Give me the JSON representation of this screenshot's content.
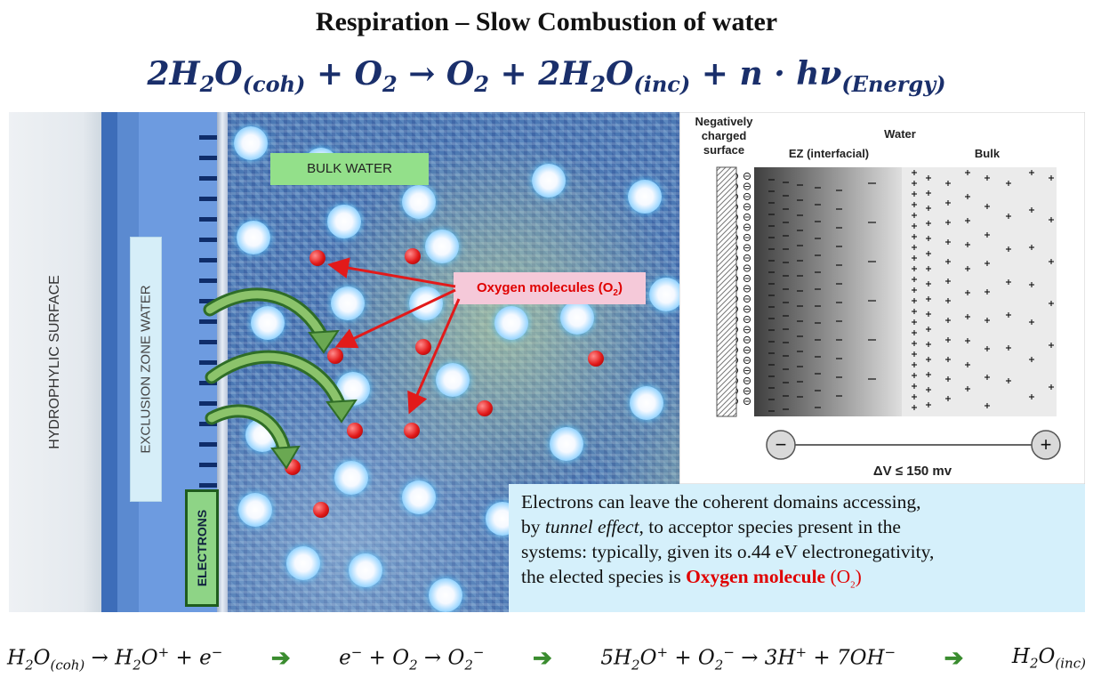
{
  "title": "Respiration – Slow Combustion of water",
  "top_equation": {
    "a": "2H",
    "b": "2",
    "c": "O",
    "d": "(coh)",
    "e": " + O",
    "f": "2",
    "g": " → O",
    "h": "2",
    "i": " + 2H",
    "j": "2",
    "k": "O",
    "l": "(inc)",
    "m": " + n · hν",
    "n": "(Energy)"
  },
  "labels": {
    "hydrophilic": "HYDROPHYLIC SURFACE",
    "exclusion_zone": "EXCLUSION ZONE WATER",
    "electrons": "ELECTRONS",
    "bulk_water": "BULK WATER",
    "oxygen_main": "Oxygen molecules (O",
    "oxygen_sub": "2",
    "oxygen_close": ")"
  },
  "panel": {
    "negatively_1": "Negatively",
    "negatively_2": "charged",
    "negatively_3": "surface",
    "water": "Water",
    "ez": "EZ (interfacial)",
    "bulk": "Bulk",
    "minus": "−",
    "plus": "+",
    "voltage": "ΔV ≤ 150 mv"
  },
  "textbox": {
    "line1": "Electrons can leave the coherent domains accessing,",
    "line2a": "by ",
    "line2b": "tunnel effect",
    "line2c": ", to acceptor species present in the",
    "line3": "systems: typically, given its o.44 eV electronegativity,",
    "line4a": "the elected species is ",
    "line4b": "Oxygen  molecule",
    "line4c": "  (O",
    "line4d": "2",
    "line4e": ")"
  },
  "bottom_equation": {
    "s1_a": "H",
    "s1_b": "2",
    "s1_c": "O",
    "s1_d": "(coh)",
    "s1_e": " → H",
    "s1_f": "2",
    "s1_g": "O",
    "s1_h": "+",
    "s1_i": " + e",
    "s1_j": "−",
    "arrow": "➔",
    "s2_a": "e",
    "s2_b": "−",
    "s2_c": " + O",
    "s2_d": "2",
    "s2_e": " → O",
    "s2_f": "2",
    "s2_g": "−",
    "s3_a": "5H",
    "s3_b": "2",
    "s3_c": "O",
    "s3_d": "+",
    "s3_e": " + O",
    "s3_f": "2",
    "s3_g": "−",
    "s3_h": " → 3H",
    "s3_i": "+",
    "s3_j": " + 7OH",
    "s3_k": "−",
    "s4_a": "H",
    "s4_b": "2",
    "s4_c": "O",
    "s4_d": "(inc)"
  },
  "colors": {
    "equation_blue": "#1a2f6b",
    "oxygen_red": "#e00000",
    "arrow_green": "#3a8c2f",
    "textbox_bg": "#d5f0fb",
    "bulk_label_bg": "#93e08a",
    "oxygen_label_bg": "#f5c9d9"
  }
}
